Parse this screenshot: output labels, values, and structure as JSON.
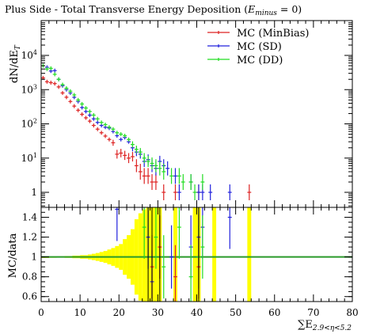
{
  "chart_data": [
    {
      "type": "scatter",
      "title": "Plus Side - Total Transverse Energy Deposition (",
      "title_math": "E",
      "title_math_sub": "minus",
      "title_tail": " = 0)",
      "ylabel": "dN/dE",
      "ylabel_sub": "T",
      "yscale": "log",
      "ylim": [
        0.5,
        10000
      ],
      "xlim": [
        0,
        80
      ],
      "y_ticks": [
        {
          "value": 1,
          "label": "1"
        },
        {
          "value": 10,
          "base": "10",
          "exp": "1"
        },
        {
          "value": 100,
          "base": "10",
          "exp": "2"
        },
        {
          "value": 1000,
          "base": "10",
          "exp": "3"
        },
        {
          "value": 10000,
          "base": "10",
          "exp": "4"
        }
      ],
      "legend_position": "top-right",
      "legend": [
        {
          "name": "MC (MinBias)",
          "color": "#dd2222"
        },
        {
          "name": "MC (SD)",
          "color": "#2222dd"
        },
        {
          "name": "MC (DD)",
          "color": "#22dd22"
        }
      ],
      "series": [
        {
          "name": "MC (MinBias)",
          "color": "#dd2222",
          "points": [
            [
              0.5,
              2200
            ],
            [
              1.5,
              1700
            ],
            [
              2.5,
              1600
            ],
            [
              3.5,
              1500
            ],
            [
              4.5,
              1200
            ],
            [
              5.5,
              800
            ],
            [
              6.5,
              600
            ],
            [
              7.5,
              450
            ],
            [
              8.5,
              330
            ],
            [
              9.5,
              250
            ],
            [
              10.5,
              190
            ],
            [
              11.5,
              150
            ],
            [
              12.5,
              120
            ],
            [
              13.5,
              90
            ],
            [
              14.5,
              70
            ],
            [
              15.5,
              55
            ],
            [
              16.5,
              44
            ],
            [
              17.5,
              35
            ],
            [
              18.5,
              28
            ],
            [
              19.5,
              13
            ],
            [
              20.5,
              14
            ],
            [
              21.5,
              12
            ],
            [
              22.5,
              10
            ],
            [
              23.5,
              11
            ],
            [
              24.5,
              6
            ],
            [
              25.5,
              4
            ],
            [
              26.5,
              3
            ],
            [
              27.5,
              3
            ],
            [
              28.5,
              2
            ],
            [
              29.5,
              2
            ],
            [
              31.5,
              1
            ],
            [
              34.5,
              1
            ],
            [
              40.5,
              1
            ],
            [
              53.5,
              1
            ]
          ]
        },
        {
          "name": "MC (SD)",
          "color": "#2222dd",
          "points": [
            [
              1.5,
              4500
            ],
            [
              2.5,
              3500
            ],
            [
              3.5,
              3600
            ],
            [
              4.5,
              2000
            ],
            [
              5.5,
              1300
            ],
            [
              6.5,
              1000
            ],
            [
              7.5,
              800
            ],
            [
              8.5,
              600
            ],
            [
              9.5,
              450
            ],
            [
              10.5,
              300
            ],
            [
              11.5,
              230
            ],
            [
              12.5,
              180
            ],
            [
              13.5,
              140
            ],
            [
              14.5,
              110
            ],
            [
              15.5,
              90
            ],
            [
              16.5,
              80
            ],
            [
              17.5,
              75
            ],
            [
              18.5,
              60
            ],
            [
              19.5,
              45
            ],
            [
              20.5,
              35
            ],
            [
              21.5,
              40
            ],
            [
              22.5,
              30
            ],
            [
              23.5,
              20
            ],
            [
              24.5,
              15
            ],
            [
              25.5,
              13
            ],
            [
              26.5,
              8
            ],
            [
              27.5,
              9
            ],
            [
              28.5,
              6
            ],
            [
              29.5,
              5
            ],
            [
              30.5,
              8
            ],
            [
              31.5,
              6
            ],
            [
              32.5,
              5
            ],
            [
              34.5,
              3
            ],
            [
              35.5,
              1
            ],
            [
              38.5,
              2
            ],
            [
              40.5,
              1
            ],
            [
              41.5,
              1
            ],
            [
              43.5,
              1
            ],
            [
              48.5,
              1
            ]
          ]
        },
        {
          "name": "MC (DD)",
          "color": "#22dd22",
          "points": [
            [
              0.5,
              5000
            ],
            [
              1.5,
              4000
            ],
            [
              2.5,
              4200
            ],
            [
              3.5,
              2800
            ],
            [
              4.5,
              2000
            ],
            [
              5.5,
              1400
            ],
            [
              6.5,
              1100
            ],
            [
              7.5,
              900
            ],
            [
              8.5,
              700
            ],
            [
              9.5,
              500
            ],
            [
              10.5,
              380
            ],
            [
              11.5,
              290
            ],
            [
              12.5,
              230
            ],
            [
              13.5,
              180
            ],
            [
              14.5,
              140
            ],
            [
              15.5,
              110
            ],
            [
              16.5,
              95
            ],
            [
              17.5,
              80
            ],
            [
              18.5,
              70
            ],
            [
              19.5,
              55
            ],
            [
              20.5,
              50
            ],
            [
              21.5,
              45
            ],
            [
              22.5,
              35
            ],
            [
              23.5,
              25
            ],
            [
              24.5,
              18
            ],
            [
              25.5,
              15
            ],
            [
              26.5,
              10
            ],
            [
              27.5,
              8
            ],
            [
              28.5,
              7
            ],
            [
              29.5,
              6
            ],
            [
              30.5,
              5
            ],
            [
              31.5,
              4
            ],
            [
              33.5,
              3
            ],
            [
              35.5,
              3
            ],
            [
              36.5,
              2
            ],
            [
              38.5,
              2
            ],
            [
              39.5,
              1
            ],
            [
              41.5,
              2
            ]
          ]
        }
      ]
    },
    {
      "type": "bar",
      "ylabel": "MC/data",
      "xlabel": "∑E",
      "xlabel_sub": "2.9<η<5.2",
      "xlim": [
        0,
        80
      ],
      "ylim": [
        0.55,
        1.5
      ],
      "x_ticks": [
        0,
        10,
        20,
        30,
        40,
        50,
        60,
        70,
        80
      ],
      "y_ticks": [
        {
          "value": 0.6,
          "label": "0.6"
        },
        {
          "value": 0.8,
          "label": "0.8"
        },
        {
          "value": 1,
          "label": "1"
        },
        {
          "value": 1.2,
          "label": "1.2"
        },
        {
          "value": 1.4,
          "label": "1.4"
        }
      ],
      "reference_line": {
        "value": 1,
        "color": "#2a9a2a"
      },
      "band_color": "#ffff00",
      "band_series": [
        {
          "x0": 0,
          "x1": 2,
          "err": 0.002
        },
        {
          "x0": 2,
          "x1": 4,
          "err": 0.004
        },
        {
          "x0": 4,
          "x1": 6,
          "err": 0.006
        },
        {
          "x0": 6,
          "x1": 8,
          "err": 0.009
        },
        {
          "x0": 8,
          "x1": 10,
          "err": 0.013
        },
        {
          "x0": 10,
          "x1": 12,
          "err": 0.018
        },
        {
          "x0": 12,
          "x1": 13,
          "err": 0.025
        },
        {
          "x0": 13,
          "x1": 14,
          "err": 0.032
        },
        {
          "x0": 14,
          "x1": 15,
          "err": 0.04
        },
        {
          "x0": 15,
          "x1": 16,
          "err": 0.05
        },
        {
          "x0": 16,
          "x1": 17,
          "err": 0.06
        },
        {
          "x0": 17,
          "x1": 18,
          "err": 0.075
        },
        {
          "x0": 18,
          "x1": 19,
          "err": 0.09
        },
        {
          "x0": 19,
          "x1": 20,
          "err": 0.11
        },
        {
          "x0": 20,
          "x1": 21,
          "err": 0.13
        },
        {
          "x0": 21,
          "x1": 22,
          "err": 0.18
        },
        {
          "x0": 22,
          "x1": 23,
          "err": 0.22
        },
        {
          "x0": 23,
          "x1": 24,
          "err": 0.28
        },
        {
          "x0": 24,
          "x1": 25,
          "err": 0.38
        },
        {
          "x0": 25,
          "x1": 26,
          "err": 0.44
        },
        {
          "x0": 26,
          "x1": 27,
          "err": 0.48
        },
        {
          "x0": 27,
          "x1": 28,
          "err": 0.5
        },
        {
          "x0": 28,
          "x1": 29,
          "err": 0.5
        },
        {
          "x0": 29,
          "x1": 30,
          "err": 0.5
        },
        {
          "x0": 30,
          "x1": 31,
          "err": 0.5
        },
        {
          "x0": 34,
          "x1": 35,
          "err": 0.5
        },
        {
          "x0": 39,
          "x1": 40,
          "err": 0.5
        },
        {
          "x0": 40,
          "x1": 41,
          "err": 0.5
        },
        {
          "x0": 44,
          "x1": 45,
          "err": 0.5
        },
        {
          "x0": 53,
          "x1": 54,
          "err": 0.5
        }
      ],
      "series": [
        {
          "name": "MC (SD)",
          "color": "#2222dd",
          "points": [
            [
              19.5,
              1.48
            ],
            [
              27.5,
              1.2
            ],
            [
              28.5,
              0.75
            ],
            [
              33.5,
              1.0
            ],
            [
              38.5,
              1.1
            ],
            [
              40.5,
              1.2
            ],
            [
              41.5,
              1.3
            ],
            [
              48.5,
              1.4
            ]
          ]
        },
        {
          "name": "MC (DD)",
          "color": "#22dd22",
          "points": [
            [
              26.5,
              1.3
            ],
            [
              29.5,
              1.2
            ],
            [
              31.5,
              0.9
            ],
            [
              35.5,
              1.3
            ],
            [
              38.5,
              0.8
            ],
            [
              40.5,
              1.0
            ],
            [
              41.5,
              1.1
            ]
          ]
        },
        {
          "name": "MC (MinBias)",
          "color": "#dd2222",
          "points": [
            [
              28.5,
              0.9
            ],
            [
              30.5,
              1.1
            ],
            [
              34.5,
              0.8
            ],
            [
              40.5,
              0.9
            ]
          ]
        }
      ]
    }
  ]
}
